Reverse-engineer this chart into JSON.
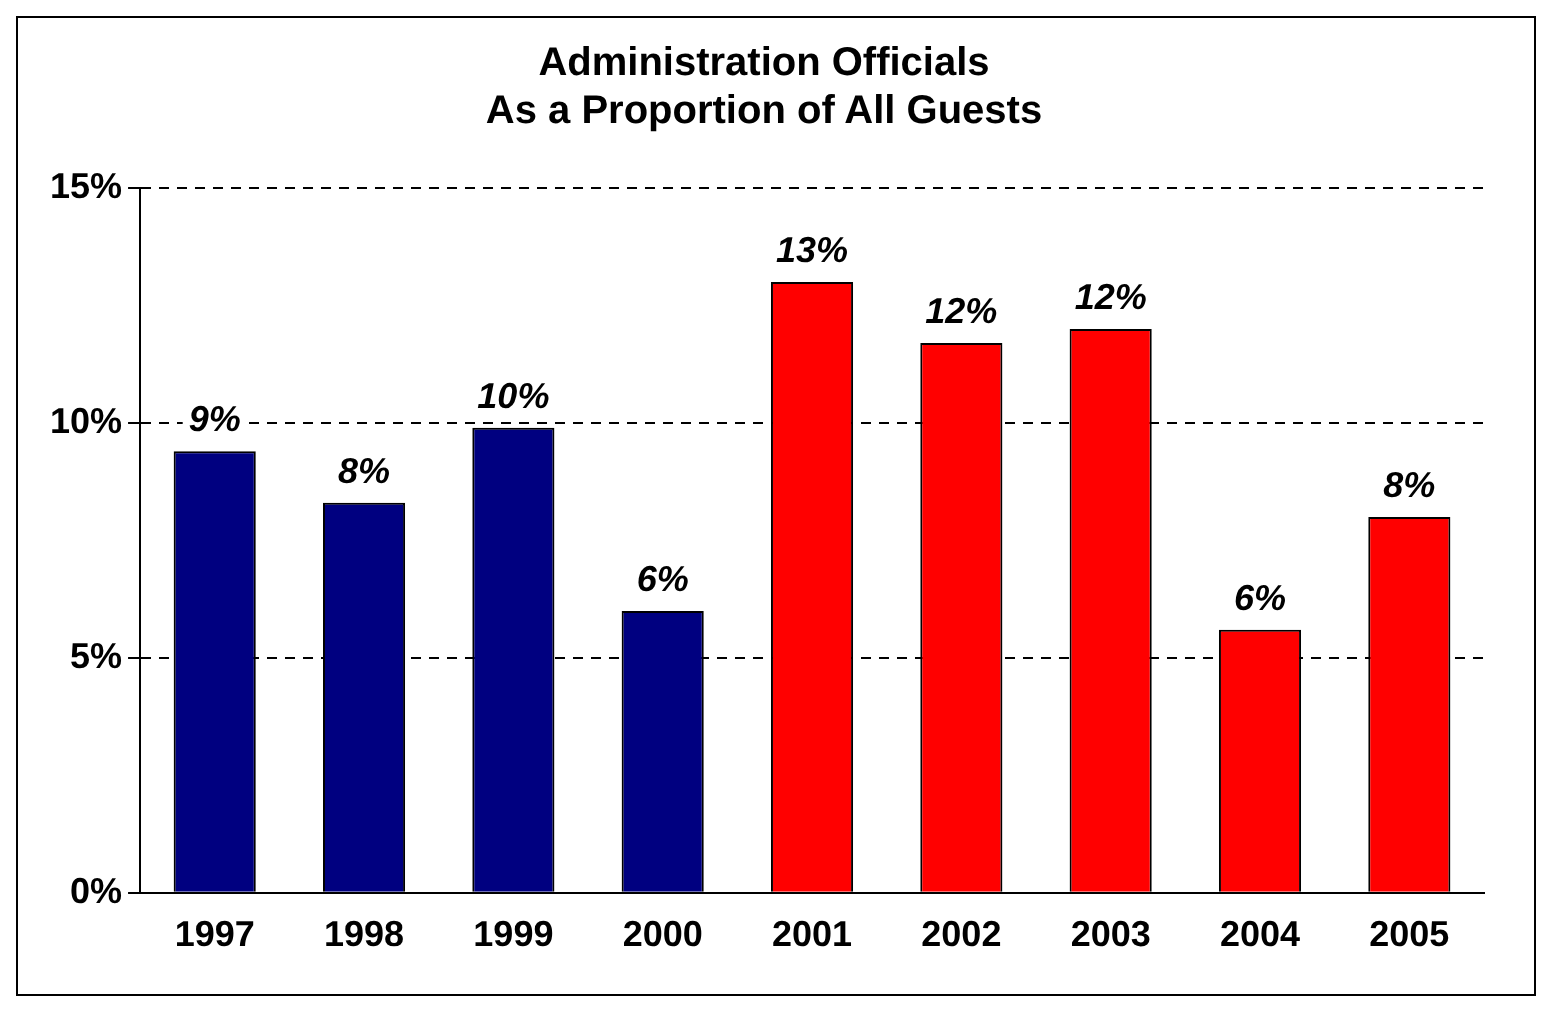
{
  "chart_data": {
    "type": "bar",
    "title": "Administration Officials\nAs a Proportion of All Guests",
    "categories": [
      "1997",
      "1998",
      "1999",
      "2000",
      "2001",
      "2002",
      "2003",
      "2004",
      "2005"
    ],
    "values": [
      9.4,
      8.3,
      9.9,
      6.0,
      13.0,
      11.7,
      12.0,
      5.6,
      8.0
    ],
    "colors": [
      "#000080",
      "#000080",
      "#000080",
      "#000080",
      "#ff0000",
      "#ff0000",
      "#ff0000",
      "#ff0000",
      "#ff0000"
    ],
    "value_labels": [
      "9%",
      "8%",
      "10%",
      "6%",
      "13%",
      "12%",
      "12%",
      "6%",
      "8%"
    ],
    "ylim": [
      0,
      15
    ],
    "yticks": [
      {
        "value": 0,
        "label": "0%"
      },
      {
        "value": 5,
        "label": "5%"
      },
      {
        "value": 10,
        "label": "10%"
      },
      {
        "value": 15,
        "label": "15%"
      }
    ],
    "grid": "y",
    "line_style": "dashed",
    "legend": false
  }
}
